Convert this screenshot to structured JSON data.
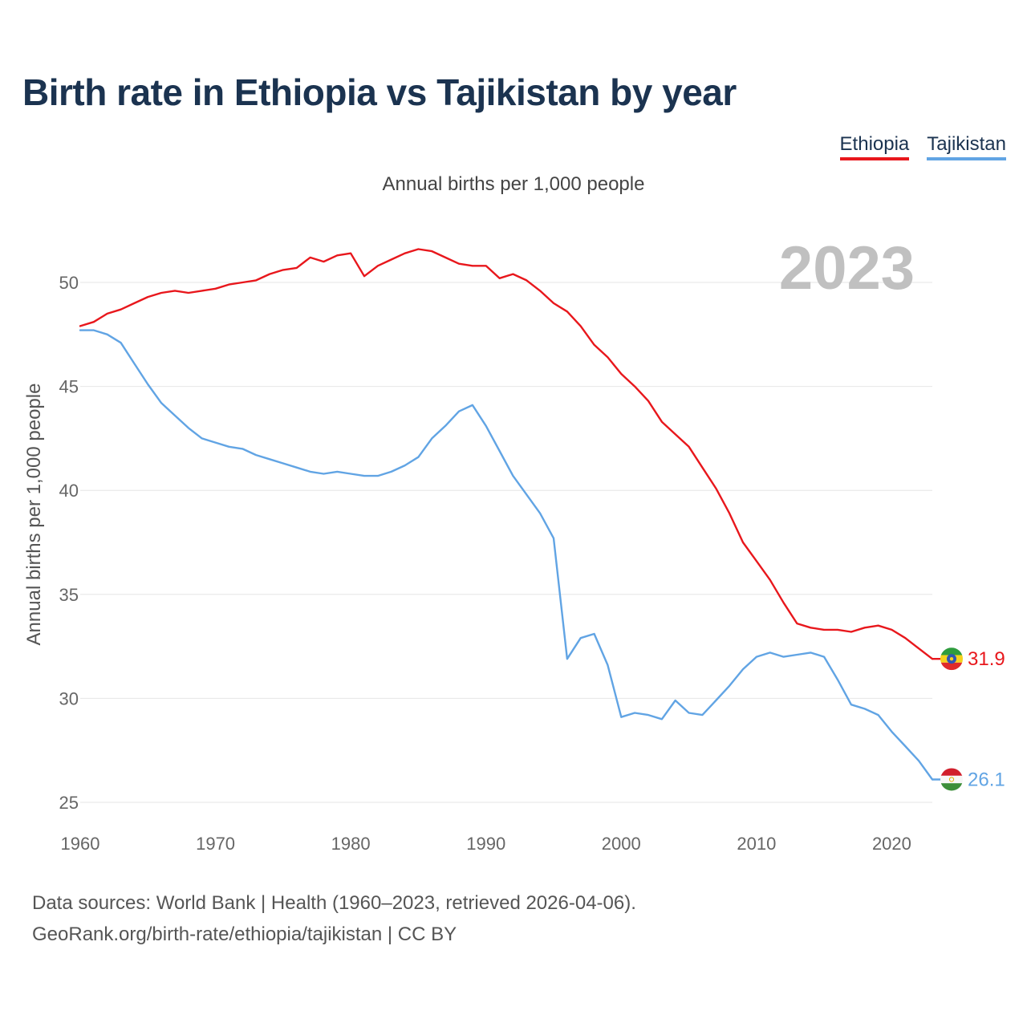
{
  "title": "Birth rate in Ethiopia vs Tajikistan by year",
  "subtitle": "Annual births per 1,000 people",
  "legend": [
    {
      "name": "Ethiopia",
      "color": "#e8171c"
    },
    {
      "name": "Tajikistan",
      "color": "#61a4e4"
    }
  ],
  "footer": {
    "line1": "Data sources: World Bank | Health (1960–2023, retrieved 2026-04-06).",
    "line2": "GeoRank.org/birth-rate/ethiopia/tajikistan | CC BY"
  },
  "chart_data": {
    "type": "line",
    "title": "Birth rate in Ethiopia vs Tajikistan by year",
    "ylabel": "Annual births per 1,000 people",
    "xlabel": "",
    "year_label": "2023",
    "xlim": [
      1960,
      2023
    ],
    "ylim": [
      25,
      53
    ],
    "x_ticks": [
      1960,
      1970,
      1980,
      1990,
      2000,
      2010,
      2020
    ],
    "y_ticks": [
      25,
      30,
      35,
      40,
      45,
      50
    ],
    "grid": true,
    "x": [
      1960,
      1961,
      1962,
      1963,
      1964,
      1965,
      1966,
      1967,
      1968,
      1969,
      1970,
      1971,
      1972,
      1973,
      1974,
      1975,
      1976,
      1977,
      1978,
      1979,
      1980,
      1981,
      1982,
      1983,
      1984,
      1985,
      1986,
      1987,
      1988,
      1989,
      1990,
      1991,
      1992,
      1993,
      1994,
      1995,
      1996,
      1997,
      1998,
      1999,
      2000,
      2001,
      2002,
      2003,
      2004,
      2005,
      2006,
      2007,
      2008,
      2009,
      2010,
      2011,
      2012,
      2013,
      2014,
      2015,
      2016,
      2017,
      2018,
      2019,
      2020,
      2021,
      2022,
      2023
    ],
    "series": [
      {
        "name": "Ethiopia",
        "color": "#e8171c",
        "end_label": "31.9",
        "values": [
          47.9,
          48.1,
          48.5,
          48.7,
          49.0,
          49.3,
          49.5,
          49.6,
          49.5,
          49.6,
          49.7,
          49.9,
          50.0,
          50.1,
          50.4,
          50.6,
          50.7,
          51.2,
          51.0,
          51.3,
          51.4,
          50.3,
          50.8,
          51.1,
          51.4,
          51.6,
          51.5,
          51.2,
          50.9,
          50.8,
          50.8,
          50.2,
          50.4,
          50.1,
          49.6,
          49.0,
          48.6,
          47.9,
          47.0,
          46.4,
          45.6,
          45.0,
          44.3,
          43.3,
          42.7,
          42.1,
          41.1,
          40.1,
          38.9,
          37.5,
          36.6,
          35.7,
          34.6,
          33.6,
          33.4,
          33.3,
          33.3,
          33.2,
          33.4,
          33.5,
          33.3,
          32.9,
          32.4,
          31.9
        ]
      },
      {
        "name": "Tajikistan",
        "color": "#61a4e4",
        "end_label": "26.1",
        "values": [
          47.7,
          47.7,
          47.5,
          47.1,
          46.1,
          45.1,
          44.2,
          43.6,
          43.0,
          42.5,
          42.3,
          42.1,
          42.0,
          41.7,
          41.5,
          41.3,
          41.1,
          40.9,
          40.8,
          40.9,
          40.8,
          40.7,
          40.7,
          40.9,
          41.2,
          41.6,
          42.5,
          43.1,
          43.8,
          44.1,
          43.1,
          41.9,
          40.7,
          39.8,
          38.9,
          37.7,
          31.9,
          32.9,
          33.1,
          31.6,
          29.1,
          29.3,
          29.2,
          29.0,
          29.9,
          29.3,
          29.2,
          29.9,
          30.6,
          31.4,
          32.0,
          32.2,
          32.0,
          32.1,
          32.2,
          32.0,
          30.9,
          29.7,
          29.5,
          29.2,
          28.4,
          27.7,
          27.0,
          26.1
        ]
      }
    ]
  }
}
